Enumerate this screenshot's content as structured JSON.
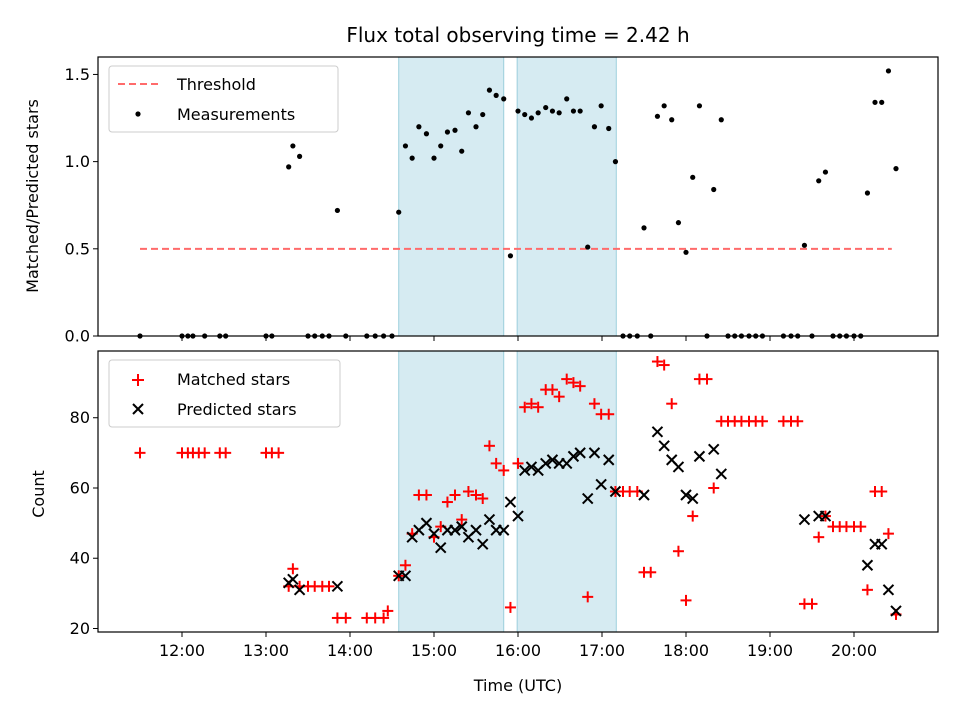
{
  "chart_data": [
    {
      "type": "scatter",
      "title": "Flux total observing time = 2.42 h",
      "xlabel": "",
      "ylabel": "Matched/Predicted stars",
      "xlim": [
        11.0,
        21.0
      ],
      "ylim": [
        0.0,
        1.6
      ],
      "yticks": [
        "0.0",
        "0.5",
        "1.0",
        "1.5"
      ],
      "xticks": [
        12,
        13,
        14,
        15,
        16,
        17,
        18,
        19,
        20
      ],
      "shaded_intervals": [
        [
          14.58,
          15.83
        ],
        [
          15.99,
          17.17
        ]
      ],
      "legend": [
        "Threshold",
        "Measurements"
      ],
      "threshold": {
        "name": "Threshold",
        "x": [
          11.5,
          20.45
        ],
        "y": 0.5,
        "color": "#ff6b6b"
      },
      "series": [
        {
          "name": "Measurements",
          "color": "#000000",
          "x": [
            11.5,
            12.0,
            12.07,
            12.13,
            12.27,
            12.45,
            12.52,
            13.0,
            13.07,
            13.27,
            13.32,
            13.4,
            13.5,
            13.58,
            13.67,
            13.75,
            13.85,
            13.95,
            14.2,
            14.3,
            14.4,
            14.5,
            14.58,
            14.66,
            14.74,
            14.82,
            14.91,
            15.0,
            15.08,
            15.16,
            15.25,
            15.33,
            15.41,
            15.5,
            15.58,
            15.66,
            15.74,
            15.83,
            15.91,
            16.0,
            16.08,
            16.16,
            16.24,
            16.33,
            16.41,
            16.49,
            16.58,
            16.66,
            16.74,
            16.83,
            16.91,
            16.99,
            17.08,
            17.16,
            17.25,
            17.33,
            17.42,
            17.5,
            17.58,
            17.66,
            17.74,
            17.83,
            17.91,
            18.0,
            18.08,
            18.16,
            18.25,
            18.33,
            18.42,
            18.5,
            18.58,
            18.66,
            18.75,
            18.83,
            18.91,
            19.16,
            19.25,
            19.33,
            19.41,
            19.5,
            19.58,
            19.66,
            19.75,
            19.83,
            19.91,
            20.0,
            20.08,
            20.16,
            20.25,
            20.33,
            20.41,
            20.5
          ],
          "y": [
            0.0,
            0.0,
            0.0,
            0.0,
            0.0,
            0.0,
            0.0,
            0.0,
            0.0,
            0.97,
            1.09,
            1.03,
            0.0,
            0.0,
            0.0,
            0.0,
            0.72,
            0.0,
            0.0,
            0.0,
            0.0,
            0.0,
            0.71,
            1.09,
            1.02,
            1.2,
            1.16,
            1.02,
            1.09,
            1.17,
            1.18,
            1.06,
            1.28,
            1.2,
            1.27,
            1.41,
            1.38,
            1.36,
            0.46,
            1.29,
            1.27,
            1.25,
            1.28,
            1.31,
            1.29,
            1.28,
            1.36,
            1.29,
            1.29,
            0.51,
            1.2,
            1.32,
            1.19,
            1.0,
            0.0,
            0.0,
            0.0,
            0.62,
            0.0,
            1.26,
            1.32,
            1.24,
            0.65,
            0.48,
            0.91,
            1.32,
            0.0,
            0.84,
            1.24,
            0.0,
            0.0,
            0.0,
            0.0,
            0.0,
            0.0,
            0.0,
            0.0,
            0.0,
            0.52,
            0.0,
            0.89,
            0.94,
            0.0,
            0.0,
            0.0,
            0.0,
            0.0,
            0.82,
            1.34,
            1.34,
            1.52,
            0.96
          ]
        }
      ]
    },
    {
      "type": "scatter",
      "title": "",
      "xlabel": "Time (UTC)",
      "ylabel": "Count",
      "xlim": [
        11.0,
        21.0
      ],
      "ylim": [
        19.0,
        99.0
      ],
      "yticks": [
        "20",
        "40",
        "60",
        "80"
      ],
      "xticks": [
        "12:00",
        "13:00",
        "14:00",
        "15:00",
        "16:00",
        "17:00",
        "18:00",
        "19:00",
        "20:00"
      ],
      "shaded_intervals": [
        [
          14.58,
          15.83
        ],
        [
          15.99,
          17.17
        ]
      ],
      "legend": [
        "Matched stars",
        "Predicted stars"
      ],
      "series": [
        {
          "name": "Matched stars",
          "marker": "plus",
          "color": "#ff0000",
          "x": [
            11.5,
            12.0,
            12.07,
            12.13,
            12.2,
            12.27,
            12.45,
            12.52,
            13.0,
            13.07,
            13.15,
            13.27,
            13.32,
            13.4,
            13.5,
            13.58,
            13.67,
            13.75,
            13.85,
            13.95,
            14.2,
            14.3,
            14.4,
            14.45,
            14.58,
            14.66,
            14.74,
            14.82,
            14.91,
            15.0,
            15.08,
            15.16,
            15.25,
            15.33,
            15.41,
            15.5,
            15.58,
            15.66,
            15.74,
            15.83,
            15.91,
            16.0,
            16.08,
            16.16,
            16.24,
            16.33,
            16.41,
            16.49,
            16.58,
            16.66,
            16.74,
            16.83,
            16.91,
            16.99,
            17.08,
            17.16,
            17.25,
            17.33,
            17.42,
            17.5,
            17.58,
            17.66,
            17.74,
            17.83,
            17.91,
            18.0,
            18.08,
            18.16,
            18.25,
            18.33,
            18.42,
            18.5,
            18.58,
            18.66,
            18.75,
            18.83,
            18.91,
            19.16,
            19.25,
            19.33,
            19.41,
            19.5,
            19.58,
            19.66,
            19.75,
            19.83,
            19.91,
            20.0,
            20.08,
            20.16,
            20.25,
            20.33,
            20.41,
            20.5
          ],
          "y": [
            70,
            70,
            70,
            70,
            70,
            70,
            70,
            70,
            70,
            70,
            70,
            32,
            37,
            32,
            32,
            32,
            32,
            32,
            23,
            23,
            23,
            23,
            23,
            25,
            35,
            38,
            47,
            58,
            58,
            46,
            49,
            56,
            58,
            51,
            59,
            58,
            57,
            72,
            67,
            65,
            26,
            67,
            83,
            84,
            83,
            88,
            88,
            86,
            91,
            90,
            89,
            29,
            84,
            81,
            81,
            59,
            59,
            59,
            59,
            36,
            36,
            96,
            95,
            84,
            42,
            28,
            52,
            91,
            91,
            60,
            79,
            79,
            79,
            79,
            79,
            79,
            79,
            79,
            79,
            79,
            27,
            27,
            46,
            52,
            49,
            49,
            49,
            49,
            49,
            31,
            59,
            59,
            47,
            24
          ]
        },
        {
          "name": "Predicted stars",
          "marker": "x",
          "color": "#000000",
          "x": [
            13.27,
            13.32,
            13.4,
            13.85,
            14.58,
            14.66,
            14.74,
            14.82,
            14.91,
            15.0,
            15.08,
            15.16,
            15.25,
            15.33,
            15.41,
            15.5,
            15.58,
            15.66,
            15.74,
            15.83,
            15.91,
            16.0,
            16.08,
            16.16,
            16.24,
            16.33,
            16.41,
            16.49,
            16.58,
            16.66,
            16.74,
            16.83,
            16.91,
            16.99,
            17.08,
            17.16,
            17.5,
            17.66,
            17.74,
            17.83,
            17.91,
            18.0,
            18.08,
            18.16,
            18.33,
            18.42,
            19.41,
            19.58,
            19.66,
            20.16,
            20.25,
            20.33,
            20.41,
            20.5
          ],
          "y": [
            33,
            34,
            31,
            32,
            35,
            35,
            46,
            48,
            50,
            47,
            43,
            48,
            48,
            49,
            46,
            48,
            44,
            51,
            48,
            48,
            56,
            52,
            65,
            66,
            65,
            67,
            68,
            67,
            67,
            69,
            70,
            57,
            70,
            61,
            68,
            59,
            58,
            76,
            72,
            68,
            66,
            58,
            57,
            69,
            71,
            64,
            51,
            52,
            52,
            38,
            44,
            44,
            31,
            25
          ]
        }
      ]
    }
  ]
}
